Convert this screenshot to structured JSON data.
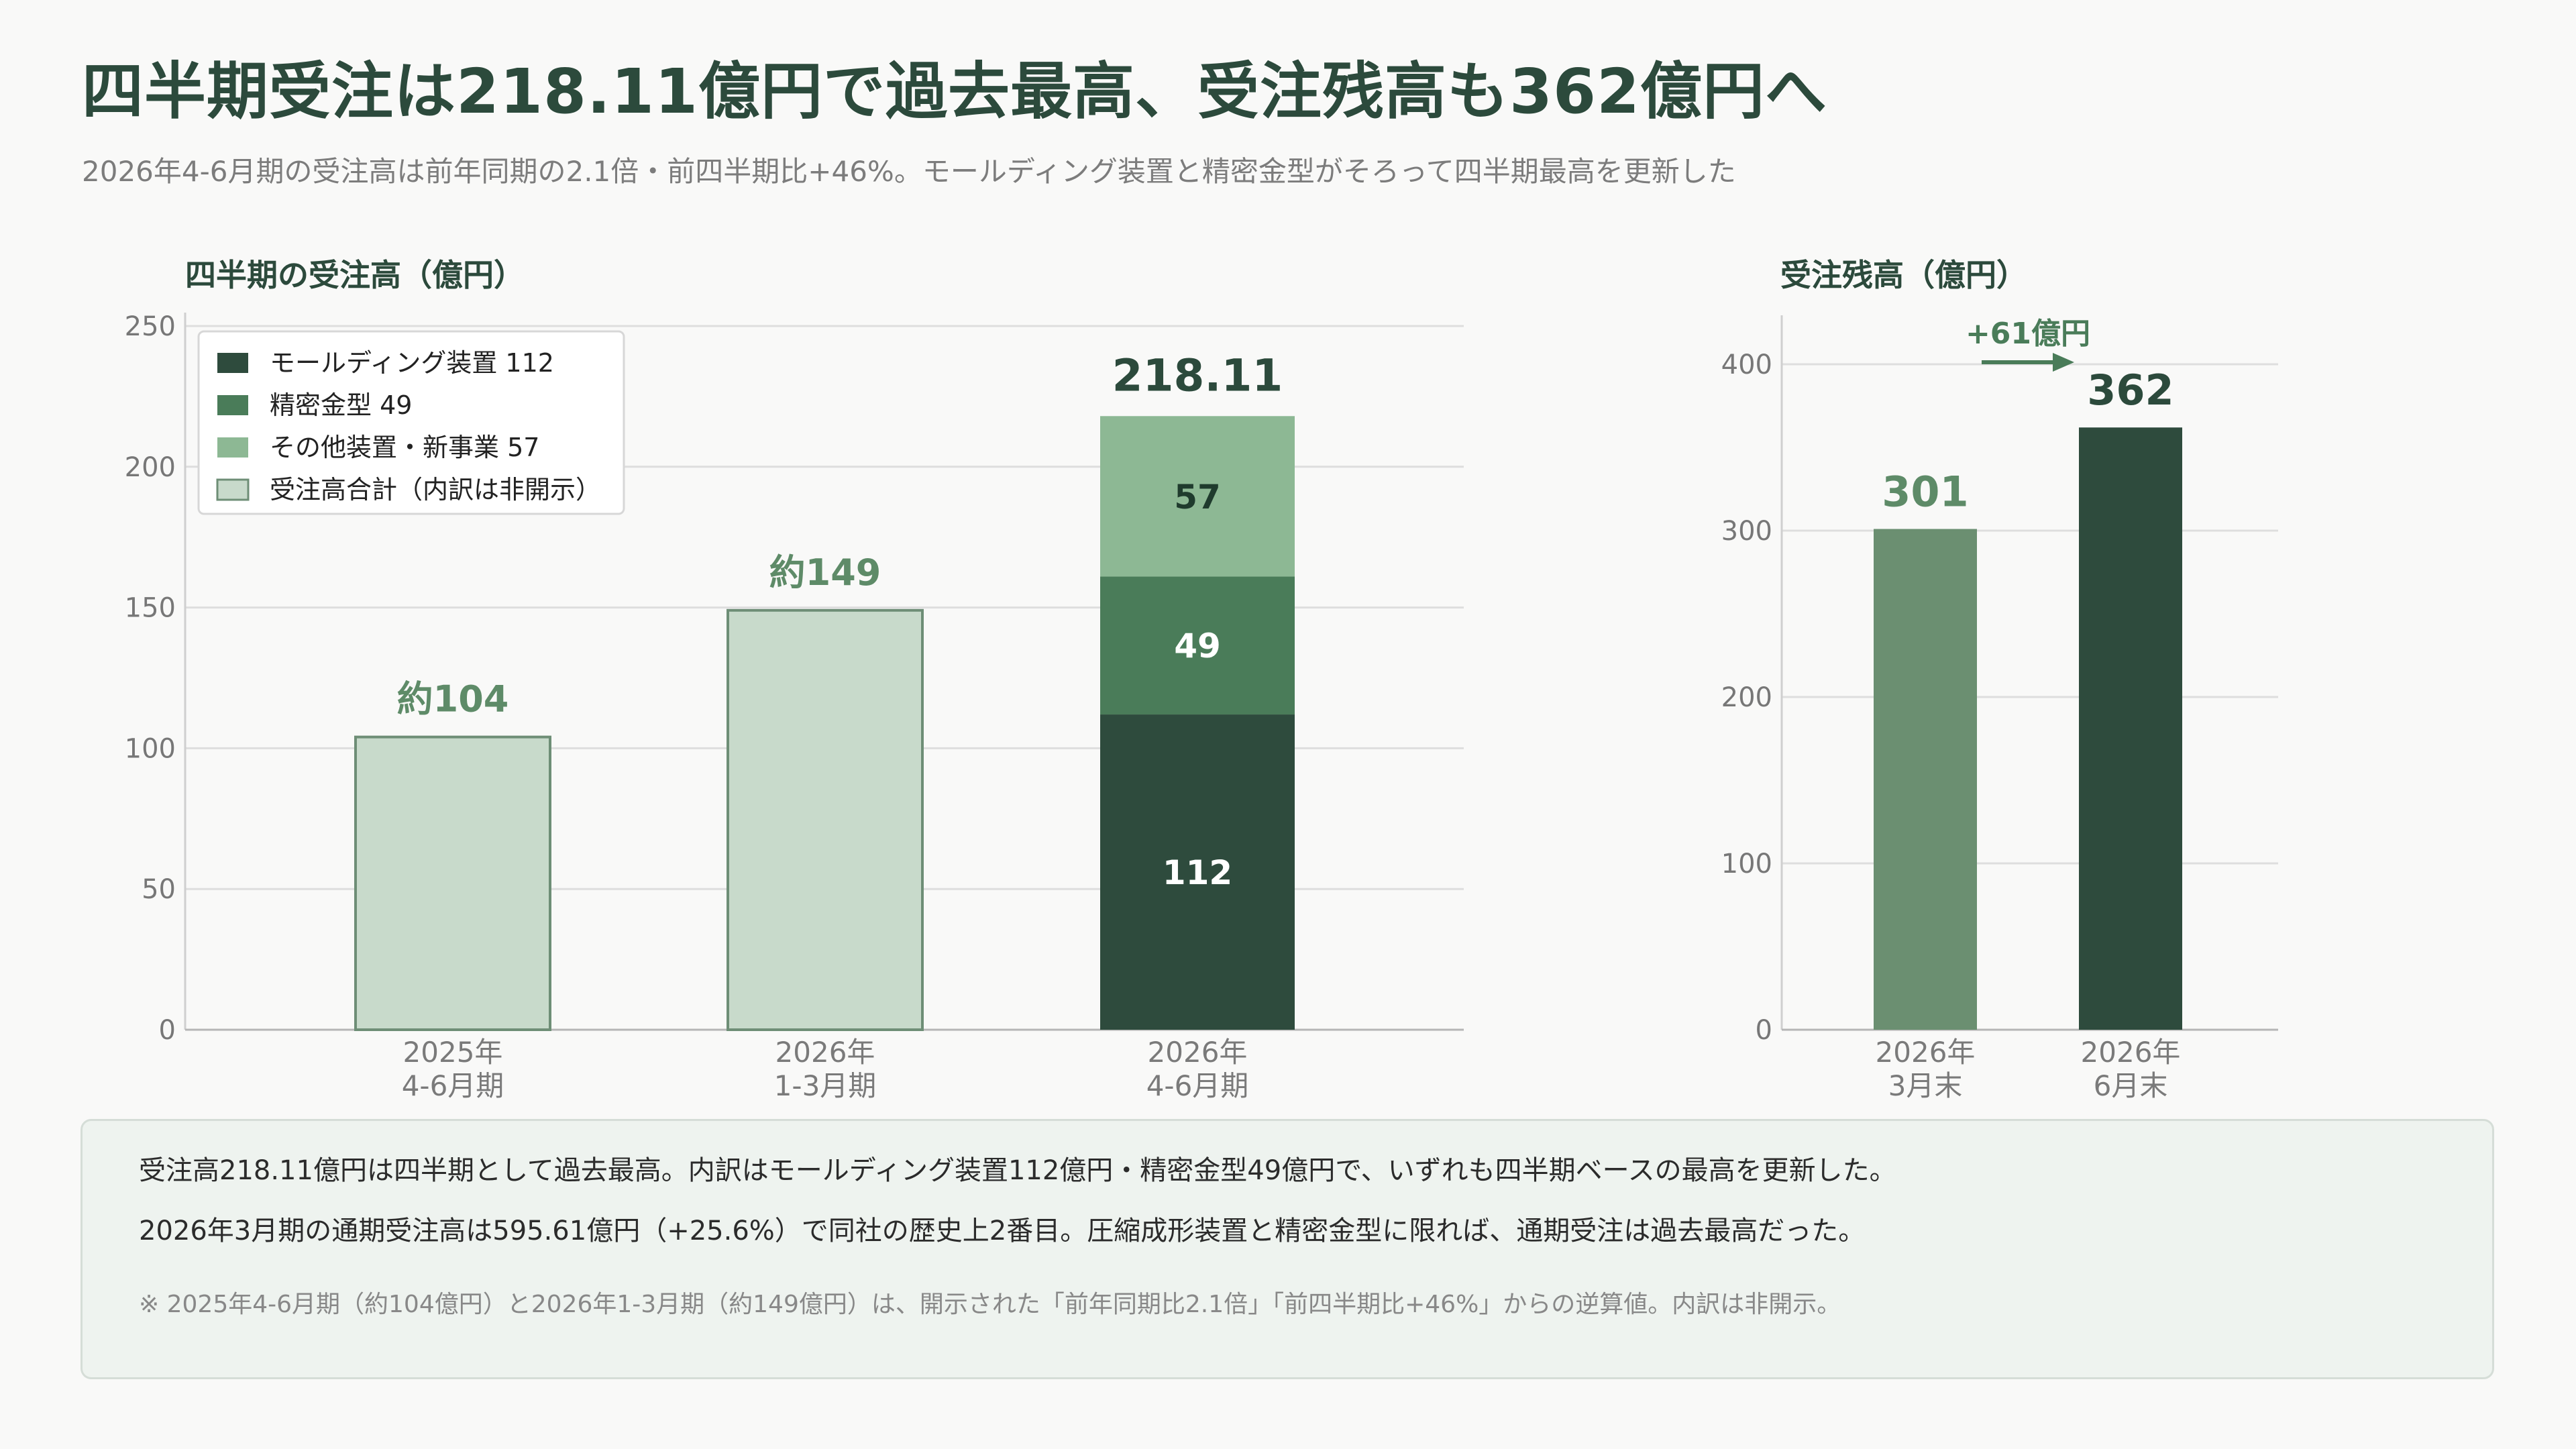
{
  "headline": "四半期受注は218.11億円で過去最高、受注残高も362億円へ",
  "subtitle": "2026年4-6月期の受注高は前年同期の2.1倍・前四半期比+46%。モールディング装置と精密金型がそろって四半期最高を更新した",
  "colors": {
    "molding": "#2e4b3d",
    "mold": "#4a7c59",
    "other": "#8db894",
    "total": "#c8dacb",
    "total_border": "#6e8e76",
    "estimate_label": "#5e8b68",
    "backlog_prev": "#6b8f71",
    "backlog_now": "#2e4b3d"
  },
  "chart_data": [
    {
      "type": "bar",
      "title": "四半期の受注高（億円）",
      "categories": [
        "2025年\n4-6月期",
        "2026年\n1-3月期",
        "2026年\n4-6月期"
      ],
      "series": [
        {
          "name": "モールディング装置 112",
          "values": [
            null,
            null,
            112
          ]
        },
        {
          "name": "精密金型 49",
          "values": [
            null,
            null,
            49
          ]
        },
        {
          "name": "その他装置・新事業 57",
          "values": [
            null,
            null,
            57
          ]
        },
        {
          "name": "受注高合計（内訳は非開示）",
          "values": [
            104,
            149,
            null
          ]
        }
      ],
      "stacked": true,
      "total_labels": [
        "約104",
        "約149",
        "218.11"
      ],
      "segment_labels": [
        "112",
        "49",
        "57"
      ],
      "yticks": [
        "0",
        "50",
        "100",
        "150",
        "200",
        "250"
      ],
      "ylim": [
        0,
        250
      ],
      "legend": "top-left",
      "grid": true
    },
    {
      "type": "bar",
      "title": "受注残高（億円）",
      "categories": [
        "2026年\n3月末",
        "2026年\n6月末"
      ],
      "values": [
        301,
        362
      ],
      "value_labels": [
        "301",
        "362"
      ],
      "annotation": "+61億円",
      "yticks": [
        "0",
        "100",
        "200",
        "300",
        "400"
      ],
      "ylim": [
        0,
        430
      ],
      "grid": true
    }
  ],
  "notes": {
    "line1": "受注高218.11億円は四半期として過去最高。内訳はモールディング装置112億円・精密金型49億円で、いずれも四半期ベースの最高を更新した。",
    "line2": "2026年3月期の通期受注高は595.61億円（+25.6%）で同社の歴史上2番目。圧縮成形装置と精密金型に限れば、通期受注は過去最高だった。",
    "footnote": "※ 2025年4-6月期（約104億円）と2026年1-3月期（約149億円）は、開示された「前年同期比2.1倍」「前四半期比+46%」からの逆算値。内訳は非開示。"
  }
}
